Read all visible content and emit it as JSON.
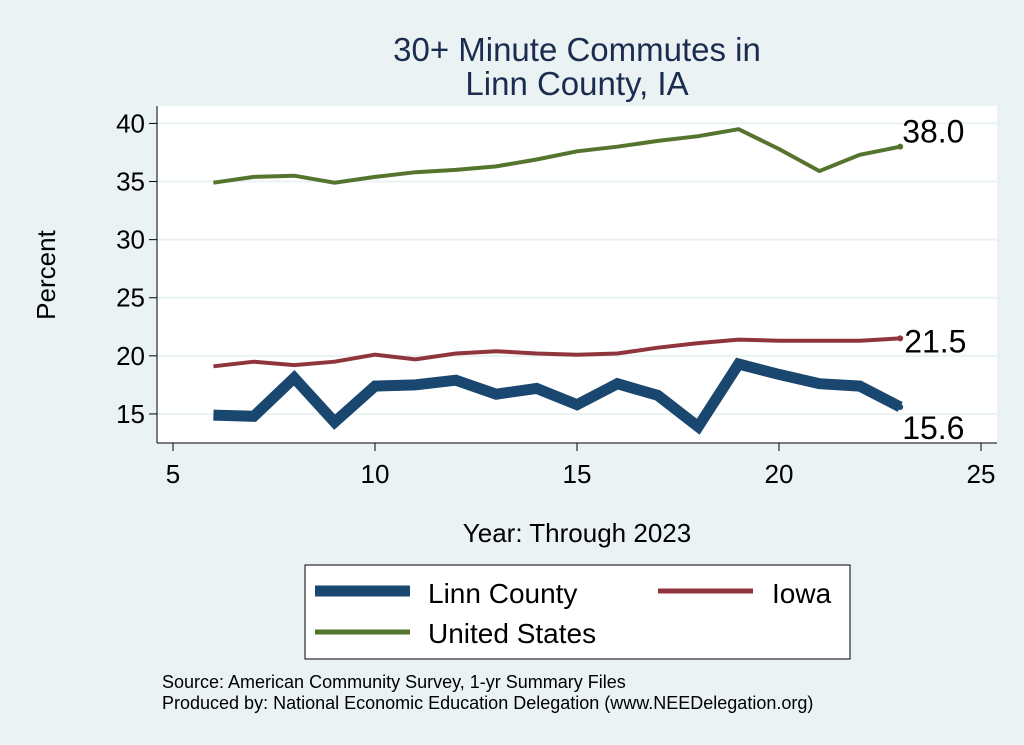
{
  "chart_data": {
    "type": "line",
    "title_lines": [
      "30+ Minute Commutes in",
      "Linn County, IA"
    ],
    "xlabel": "Year: Through 2023",
    "ylabel": "Percent",
    "xlim": [
      5,
      25
    ],
    "ylim": [
      12.5,
      41.5
    ],
    "xticks": [
      5,
      10,
      15,
      20,
      25
    ],
    "yticks": [
      15,
      20,
      25,
      30,
      35,
      40
    ],
    "x": [
      6,
      7,
      8,
      9,
      10,
      11,
      12,
      13,
      14,
      15,
      16,
      17,
      18,
      19,
      20,
      21,
      22,
      23
    ],
    "series": [
      {
        "name": "Linn County",
        "color": "#1a476f",
        "values": [
          14.9,
          14.8,
          18.1,
          14.3,
          17.4,
          17.5,
          17.9,
          16.7,
          17.2,
          15.8,
          17.6,
          16.6,
          13.9,
          19.3,
          18.4,
          17.6,
          17.4,
          15.6
        ],
        "end_label": "15.6"
      },
      {
        "name": "Iowa",
        "color": "#90353b",
        "values": [
          19.1,
          19.5,
          19.2,
          19.5,
          20.1,
          19.7,
          20.2,
          20.4,
          20.2,
          20.1,
          20.2,
          20.7,
          21.1,
          21.4,
          21.3,
          21.3,
          21.3,
          21.5
        ],
        "end_label": "21.5"
      },
      {
        "name": "United States",
        "color": "#55752f",
        "values": [
          34.9,
          35.4,
          35.5,
          34.9,
          35.4,
          35.8,
          36.0,
          36.3,
          36.9,
          37.6,
          38.0,
          38.5,
          38.9,
          39.5,
          37.8,
          35.9,
          37.3,
          38.0
        ],
        "end_label": "38.0"
      }
    ],
    "legend": {
      "placement": "bottom",
      "entries": [
        "Linn County",
        "Iowa",
        "United States"
      ]
    },
    "notes": [
      "Source: American Community Survey, 1-yr Summary Files",
      "Produced by: National Economic Education Delegation (www.NEEDelegation.org)"
    ]
  }
}
